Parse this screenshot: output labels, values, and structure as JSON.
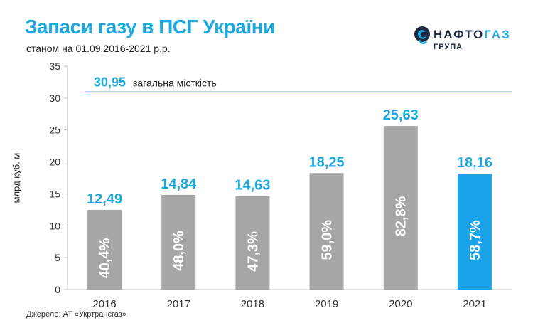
{
  "header": {
    "title": "Запаси газу в ПСГ України",
    "subtitle": "станом на 01.09.2016-2021 р.р."
  },
  "logo": {
    "name_main": "НАФТО",
    "name_accent": "ГАЗ",
    "group": "ГРУПА",
    "icon": "naftogaz-logo-icon"
  },
  "source": "Джерело: АТ «Укртрансгаз»",
  "colors": {
    "accent": "#1aa8e0",
    "bar_default": "#a6a6a6",
    "bar_highlight": "#1aa3e8",
    "capacity_line": "#1aa8e0",
    "axis": "#bfbfbf"
  },
  "chart_data": {
    "type": "bar",
    "title": "Запаси газу в ПСГ України",
    "subtitle": "станом на 01.09.2016-2021 р.р.",
    "ylabel": "млрд куб. м",
    "xlabel": "",
    "ylim": [
      0,
      35
    ],
    "yticks": [
      "0",
      "5",
      "10",
      "15",
      "20",
      "25",
      "30",
      "35"
    ],
    "categories": [
      "2016",
      "2017",
      "2018",
      "2019",
      "2020",
      "2021"
    ],
    "values": [
      12.49,
      14.84,
      14.63,
      18.25,
      25.63,
      18.16
    ],
    "value_labels": [
      "12,49",
      "14,84",
      "14,63",
      "18,25",
      "25,63",
      "18,16"
    ],
    "inner_labels": [
      "40,4%",
      "48,0%",
      "47,3%",
      "59,0%",
      "82,8%",
      "58,7%"
    ],
    "highlight_category": "2021",
    "reference_line": {
      "value": 30.95,
      "value_label": "30,95",
      "label": "загальна місткість"
    },
    "grid": false,
    "legend": "none"
  }
}
